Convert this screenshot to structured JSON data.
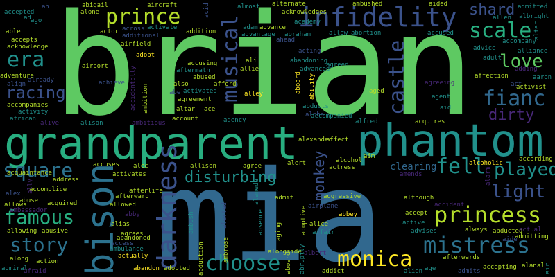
{
  "words": {
    "brian": "brian",
    "mia": "mia",
    "grandparent": "grandparent",
    "phantom": "phantom",
    "bison": "bison",
    "darkness": "darkness",
    "infidelity": "infidelity",
    "prince": "prince",
    "princess": "princess",
    "mistress": "mistress",
    "monica": "monica",
    "choose": "choose",
    "musical": "musical",
    "scale": "scale",
    "era": "era",
    "love": "love",
    "castle": "castle",
    "fianc": "fianc",
    "played": "played",
    "fell": "fell",
    "light": "light",
    "square": "square",
    "famous": "famous",
    "story": "story",
    "racing": "racing",
    "disturbing": "disturbing",
    "monkey": "monkey",
    "shard": "shard",
    "dirty": "dirty",
    "clearing": "clearing",
    "accepted": "accepted",
    "ah": "ah",
    "abigail": "abigail",
    "aircraft": "aircraft",
    "acid": "acid",
    "almost": "almost",
    "alternate": "alternate",
    "ambushed": "ambushed",
    "aided": "aided",
    "admitted": "admitted",
    "ad": "ad",
    "ago": "ago",
    "alone": "alone",
    "acknowledges": "acknowledges",
    "allen": "allen",
    "albright": "albright",
    "able": "able",
    "accepts": "accepts",
    "actor": "actor",
    "across": "across",
    "activate": "activate",
    "addition": "addition",
    "adam": "adam",
    "advance": "advance",
    "academy": "academy",
    "alter": "alter",
    "acknowledge": "acknowledge",
    "additional": "additional",
    "advantage": "advantage",
    "abraham": "abraham",
    "allow": "allow",
    "abortion": "abortion",
    "accused": "accused",
    "accompany": "accompany",
    "airfield": "airfield",
    "ahead": "ahead",
    "advice": "advice",
    "alliance": "alliance",
    "adopt": "adopt",
    "adventure": "adventure",
    "acting": "acting",
    "adult": "adult",
    "adding": "adding",
    "airport": "airport",
    "accusing": "accusing",
    "ali": "ali",
    "abandoning": "abandoning",
    "agreed": "agreed",
    "aaron": "aaron",
    "aftermath": "aftermath",
    "allie": "allie",
    "advanced": "advanced",
    "affection": "affection",
    "align": "align",
    "already": "already",
    "abused": "abused",
    "afford": "afford",
    "act": "act",
    "activist": "activist",
    "achieve": "achieve",
    "also": "also",
    "agreeing": "agreeing",
    "accompanies": "accompanies",
    "abe": "abe",
    "activated": "activated",
    "alley": "alley",
    "agent": "agent",
    "activity": "activity",
    "ambition": "ambition",
    "agreement": "agreement",
    "accidentally": "accidentally",
    "ability": "ability",
    "aid": "aid",
    "aged": "aged",
    "altar": "altar",
    "ace": "ace",
    "alpha": "alpha",
    "abducts": "abducts",
    "african": "african",
    "alive": "alive",
    "alison": "alison",
    "ambitious": "ambitious",
    "account": "account",
    "agency": "agency",
    "accompanied": "accompanied",
    "alfred": "alfred",
    "acquires": "acquires",
    "alexander": "alexander",
    "affect": "affect",
    "according": "according",
    "acquaintance": "acquaintance",
    "accuses": "accuses",
    "alec": "alec",
    "allison": "allison",
    "agree": "agree",
    "alert": "alert",
    "alcohol": "alcohol",
    "aim": "aim",
    "alcoholic": "alcoholic",
    "alarm": "alarm",
    "activates": "activates",
    "actress": "actress",
    "amends": "amends",
    "address": "address",
    "afterlife": "afterlife",
    "alex": "alex",
    "accomplice": "accomplice",
    "afterward": "afterward",
    "alameda": "alameda",
    "aggressive": "aggressive",
    "although": "although",
    "ally": "ally",
    "abuse": "abuse",
    "allows": "allows",
    "acquired": "acquired",
    "allowed": "allowed",
    "admit": "admit",
    "accident": "accident",
    "ambassador": "ambassador",
    "airplane": "airplane",
    "abbey": "abbey",
    "accept": "accept",
    "allowing": "allowing",
    "abusive": "abusive",
    "alias": "alias",
    "abby": "abby",
    "ambush": "ambush",
    "alerted": "alerted",
    "absence": "absence",
    "adoptive": "adoptive",
    "alice": "alice",
    "active": "active",
    "always": "always",
    "abducted": "abducted",
    "actual": "actual",
    "agrees": "agrees",
    "affair": "affair",
    "advises": "advises",
    "admitting": "admitting",
    "access": "access",
    "abandoned": "abandoned",
    "aide": "aide",
    "along": "along",
    "ambrose": "ambrose",
    "aging": "aging",
    "albert": "albert",
    "action": "action",
    "actually": "actually",
    "abduction": "abduction",
    "alongside": "alongside",
    "afterwards": "afterwards",
    "ambulance": "ambulance",
    "alan": "alan",
    "al": "al",
    "admiral": "admiral",
    "abandon": "abandon",
    "adopted": "adopted",
    "aboard": "aboard",
    "abruptly": "abruptly",
    "accepting": "accepting",
    "admits": "admits",
    "afraid": "afraid",
    "addict": "addict",
    "alien": "alien",
    "age": "age",
    "air": "air"
  },
  "colors": {
    "green": "#5ec962",
    "teal": "#21918c",
    "blue": "#3b528b",
    "purple": "#482878",
    "deep": "#440154",
    "yellow": "#fde725",
    "lime": "#b5de2b",
    "mid": "#2c728e",
    "sea": "#28ae80",
    "indigo": "#31688e"
  }
}
